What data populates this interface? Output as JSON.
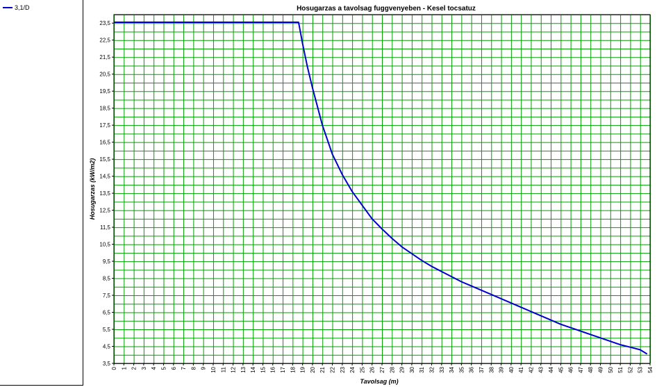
{
  "legend": {
    "items": [
      {
        "label": "3,1/D",
        "color": "#0000cc"
      }
    ]
  },
  "colors": {
    "grid": "#00a000",
    "series": "#0000cc",
    "frame": "#000000"
  },
  "chart_data": {
    "type": "line",
    "title": "Hosugarzas a tavolsag fuggvenyeben - Kesel tocsatuz",
    "xlabel": "Tavolsag (m)",
    "ylabel": "Hosugarzas (kW/m2)",
    "xlim": [
      0,
      54
    ],
    "ylim": [
      3.5,
      24
    ],
    "xticks": [
      "0",
      "1",
      "2",
      "3",
      "4",
      "5",
      "6",
      "7",
      "8",
      "9",
      "10",
      "11",
      "12",
      "13",
      "14",
      "15",
      "16",
      "17",
      "18",
      "19",
      "20",
      "21",
      "22",
      "23",
      "24",
      "25",
      "26",
      "27",
      "28",
      "29",
      "30",
      "31",
      "32",
      "33",
      "34",
      "35",
      "36",
      "37",
      "38",
      "39",
      "40",
      "41",
      "42",
      "43",
      "44",
      "45",
      "46",
      "47",
      "48",
      "49",
      "50",
      "51",
      "52",
      "53",
      "54"
    ],
    "yticks": [
      "3,5",
      "4,5",
      "5,5",
      "6,5",
      "7,5",
      "8,5",
      "9,5",
      "10,5",
      "11,5",
      "12,5",
      "13,5",
      "14,5",
      "15,5",
      "16,5",
      "17,5",
      "18,5",
      "19,5",
      "20,5",
      "21,5",
      "22,5",
      "23,5"
    ],
    "grid": true,
    "legend_position": "left-panel",
    "series": [
      {
        "name": "3,1/D",
        "x": [
          0,
          18.6,
          19,
          19.5,
          20,
          21,
          22,
          23,
          24,
          25,
          26,
          27,
          28,
          29,
          30,
          31,
          32,
          33,
          34,
          35,
          36,
          37,
          38,
          39,
          40,
          41,
          42,
          43,
          44,
          45,
          46,
          47,
          48,
          49,
          50,
          51,
          52,
          53,
          53.7
        ],
        "y": [
          23.55,
          23.55,
          22.3,
          20.9,
          19.7,
          17.5,
          15.8,
          14.6,
          13.6,
          12.8,
          12.0,
          11.4,
          10.85,
          10.35,
          9.95,
          9.55,
          9.2,
          8.9,
          8.6,
          8.3,
          8.05,
          7.8,
          7.55,
          7.3,
          7.05,
          6.8,
          6.55,
          6.3,
          6.05,
          5.8,
          5.6,
          5.4,
          5.2,
          5.0,
          4.8,
          4.6,
          4.45,
          4.3,
          4.05
        ]
      }
    ]
  }
}
